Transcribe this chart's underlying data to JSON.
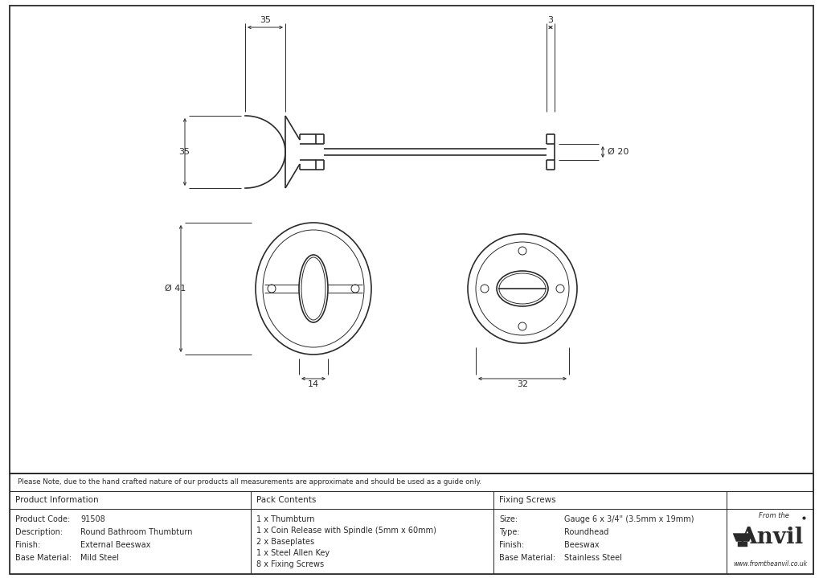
{
  "bg_color": "#ffffff",
  "line_color": "#2a2a2a",
  "note_text": "Please Note, due to the hand crafted nature of our products all measurements are approximate and should be used as a guide only.",
  "product_info": {
    "header": "Product Information",
    "rows": [
      [
        "Product Code:",
        "91508"
      ],
      [
        "Description:",
        "Round Bathroom Thumbturn"
      ],
      [
        "Finish:",
        "External Beeswax"
      ],
      [
        "Base Material:",
        "Mild Steel"
      ]
    ]
  },
  "pack_contents": {
    "header": "Pack Contents",
    "items": [
      "1 x Thumbturn",
      "1 x Coin Release with Spindle (5mm x 60mm)",
      "2 x Baseplates",
      "1 x Steel Allen Key",
      "8 x Fixing Screws"
    ]
  },
  "fixing_screws": {
    "header": "Fixing Screws",
    "rows": [
      [
        "Size:",
        "Gauge 6 x 3/4\" (3.5mm x 19mm)"
      ],
      [
        "Type:",
        "Roundhead"
      ],
      [
        "Finish:",
        "Beeswax"
      ],
      [
        "Base Material:",
        "Stainless Steel"
      ]
    ]
  },
  "dim_35_top": "35",
  "dim_3_top": "3",
  "dim_35_side": "35",
  "dim_20_right": "Ø 20",
  "dim_41_left": "Ø 41",
  "dim_14_bottom": "14",
  "dim_32_bottom": "32"
}
